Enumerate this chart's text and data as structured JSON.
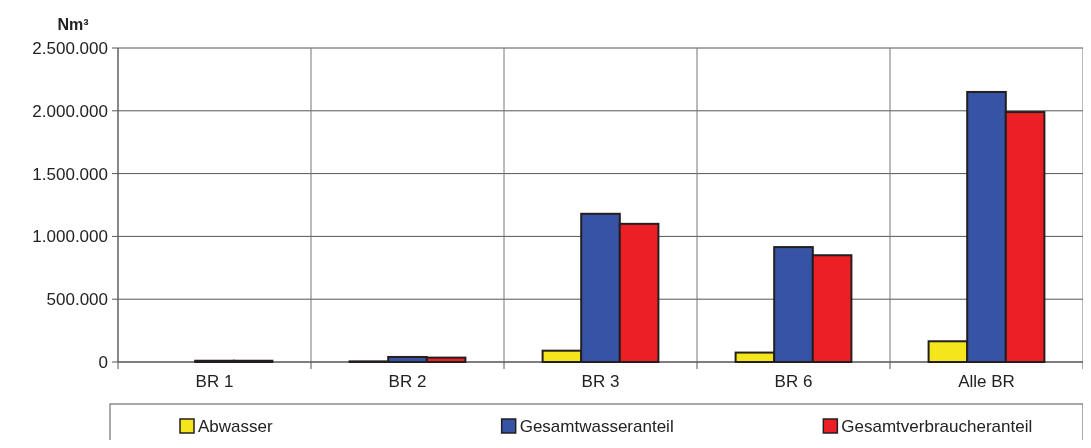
{
  "chart_data": {
    "type": "bar",
    "ylabel": "Nm³",
    "categories": [
      "BR 1",
      "BR 2",
      "BR 3",
      "BR 6",
      "Alle BR"
    ],
    "series": [
      {
        "name": "Abwasser",
        "color": "#f5e51b",
        "values": [
          0,
          5000,
          90000,
          75000,
          165000
        ]
      },
      {
        "name": "Gesamtwasseranteil",
        "color": "#3753a5",
        "values": [
          10000,
          40000,
          1180000,
          915000,
          2150000
        ]
      },
      {
        "name": "Gesamtverbraucheranteil",
        "color": "#ec2024",
        "values": [
          10000,
          35000,
          1100000,
          850000,
          1990000
        ]
      }
    ],
    "ylim": [
      0,
      2500000
    ],
    "yticks": [
      {
        "value": 0,
        "label": "0"
      },
      {
        "value": 500000,
        "label": "500.000"
      },
      {
        "value": 1000000,
        "label": "1.000.000"
      },
      {
        "value": 1500000,
        "label": "1.500.000"
      },
      {
        "value": 2000000,
        "label": "2.000.000"
      },
      {
        "value": 2500000,
        "label": "2.500.000"
      }
    ],
    "grid": true,
    "legend": "bottom"
  }
}
